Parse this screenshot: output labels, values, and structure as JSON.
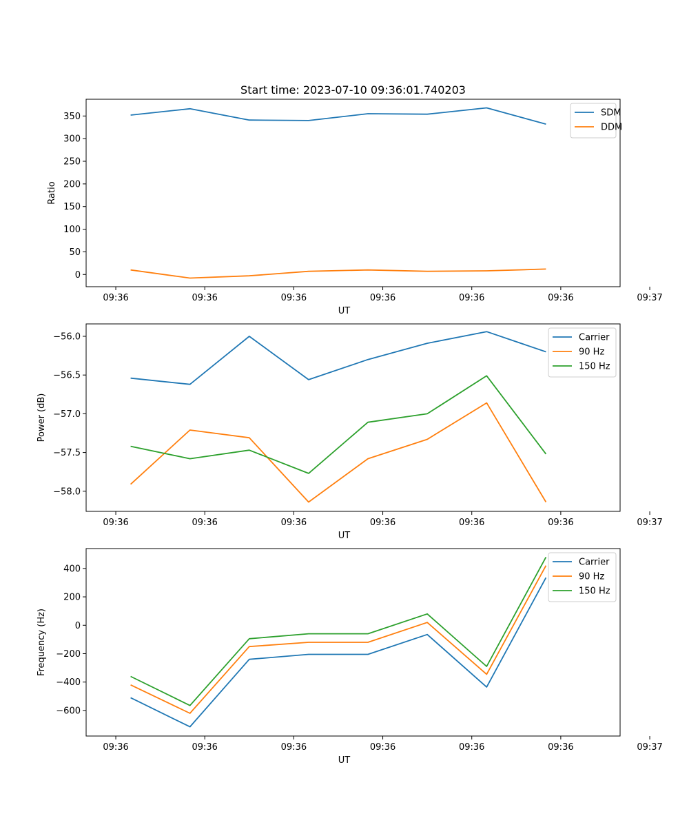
{
  "figure_title": "Start time: 2023-07-10 09:36:01.740203",
  "colors": {
    "c0": "#1f77b4",
    "c1": "#ff7f0e",
    "c2": "#2ca02c"
  },
  "chart_data": [
    {
      "type": "line",
      "title": "Start time: 2023-07-10 09:36:01.740203",
      "xlabel": "UT",
      "ylabel": "Ratio",
      "xlim": [
        -0.5,
        8.5
      ],
      "ylim": [
        -27,
        387
      ],
      "x_ticks": [
        0,
        1.5,
        3,
        4.5,
        6,
        7.5,
        9
      ],
      "x_tick_labels": [
        "09:36",
        "09:36",
        "09:36",
        "09:36",
        "09:36",
        "09:36",
        "09:36"
      ],
      "x_tick_overflow_label": "09:37",
      "y_ticks": [
        0,
        50,
        100,
        150,
        200,
        250,
        300,
        350
      ],
      "y_tick_labels": [
        "0",
        "50",
        "100",
        "150",
        "200",
        "250",
        "300",
        "350"
      ],
      "legend_position": "top-right",
      "x": [
        0.25,
        1.25,
        2.25,
        3.25,
        4.25,
        5.25,
        6.25,
        7.25
      ],
      "series": [
        {
          "name": "SDM",
          "color": "#1f77b4",
          "values": [
            352,
            366,
            341,
            340,
            355,
            354,
            368,
            332
          ]
        },
        {
          "name": "DDM",
          "color": "#ff7f0e",
          "values": [
            10,
            -8,
            -3,
            7,
            10,
            7,
            8,
            12
          ]
        }
      ]
    },
    {
      "type": "line",
      "title": "",
      "xlabel": "UT",
      "ylabel": "Power (dB)",
      "xlim": [
        -0.5,
        8.5
      ],
      "ylim": [
        -58.26,
        -55.84
      ],
      "x_ticks": [
        0,
        1.5,
        3,
        4.5,
        6,
        7.5,
        9
      ],
      "x_tick_labels": [
        "09:36",
        "09:36",
        "09:36",
        "09:36",
        "09:36",
        "09:36",
        "09:36"
      ],
      "x_tick_overflow_label": "09:37",
      "y_ticks": [
        -58.0,
        -57.5,
        -57.0,
        -56.5,
        -56.0
      ],
      "y_tick_labels": [
        "−58.0",
        "−57.5",
        "−57.0",
        "−56.5",
        "−56.0"
      ],
      "legend_position": "top-right",
      "x": [
        0.25,
        1.25,
        2.25,
        3.25,
        4.25,
        5.25,
        6.25,
        7.25
      ],
      "series": [
        {
          "name": "Carrier",
          "color": "#1f77b4",
          "values": [
            -56.54,
            -56.62,
            -56.0,
            -56.56,
            -56.3,
            -56.09,
            -55.94,
            -56.2
          ]
        },
        {
          "name": "90 Hz",
          "color": "#ff7f0e",
          "values": [
            -57.91,
            -57.21,
            -57.31,
            -58.14,
            -57.58,
            -57.33,
            -56.86,
            -58.14
          ]
        },
        {
          "name": "150 Hz",
          "color": "#2ca02c",
          "values": [
            -57.42,
            -57.58,
            -57.47,
            -57.77,
            -57.11,
            -57.0,
            -56.51,
            -57.52
          ]
        }
      ]
    },
    {
      "type": "line",
      "title": "",
      "xlabel": "UT",
      "ylabel": "Frequency (Hz)",
      "xlim": [
        -0.5,
        8.5
      ],
      "ylim": [
        -780,
        540
      ],
      "x_ticks": [
        0,
        1.5,
        3,
        4.5,
        6,
        7.5,
        9
      ],
      "x_tick_labels": [
        "09:36",
        "09:36",
        "09:36",
        "09:36",
        "09:36",
        "09:36",
        "09:36"
      ],
      "x_tick_overflow_label": "09:37",
      "y_ticks": [
        -600,
        -400,
        -200,
        0,
        200,
        400
      ],
      "y_tick_labels": [
        "−600",
        "−400",
        "−200",
        "0",
        "200",
        "400"
      ],
      "legend_position": "top-right",
      "x": [
        0.25,
        1.25,
        2.25,
        3.25,
        4.25,
        5.25,
        6.25,
        7.25
      ],
      "series": [
        {
          "name": "Carrier",
          "color": "#1f77b4",
          "values": [
            -510,
            -715,
            -240,
            -205,
            -205,
            -65,
            -435,
            335
          ]
        },
        {
          "name": "90 Hz",
          "color": "#ff7f0e",
          "values": [
            -420,
            -620,
            -150,
            -120,
            -120,
            20,
            -345,
            420
          ]
        },
        {
          "name": "150 Hz",
          "color": "#2ca02c",
          "values": [
            -360,
            -565,
            -95,
            -60,
            -60,
            80,
            -290,
            480
          ]
        }
      ]
    }
  ]
}
